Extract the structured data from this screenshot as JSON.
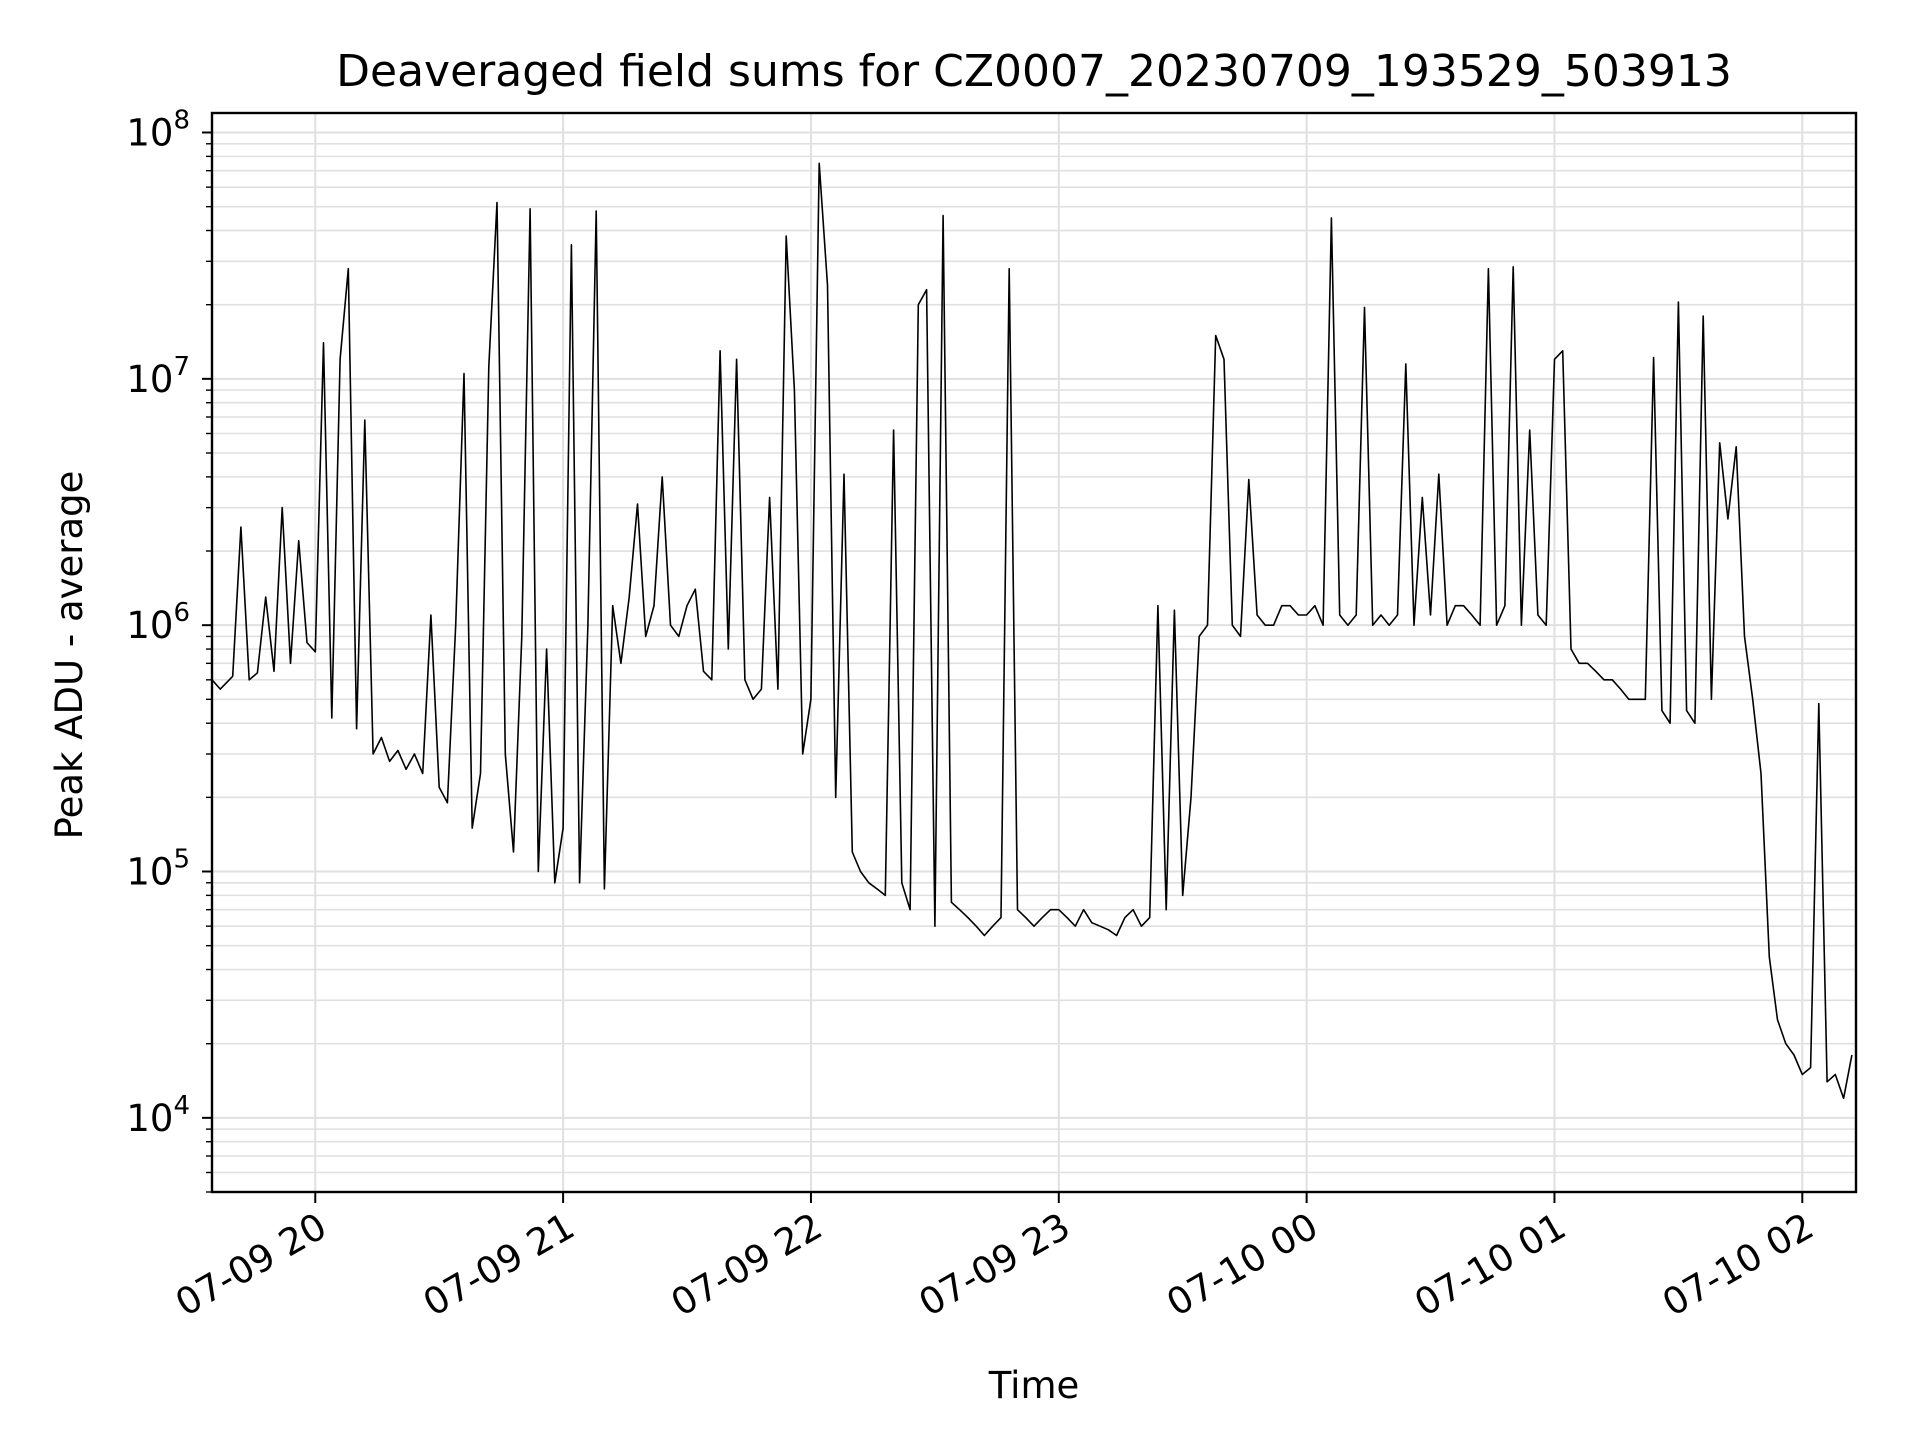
{
  "chart_data": {
    "type": "line",
    "title": "Deaveraged field sums for CZ0007_20230709_193529_503913",
    "xlabel": "Time",
    "ylabel": "Peak ADU - average",
    "yscale": "log",
    "ylim": [
      5000,
      120000000
    ],
    "xlim": [
      "2023-07-09 19:35",
      "2023-07-10 02:13"
    ],
    "grid": true,
    "line_color": "#000000",
    "grid_color": "#e0e0e0",
    "x_ticks": [
      {
        "value": "2023-07-09 20:00",
        "label": "07-09 20"
      },
      {
        "value": "2023-07-09 21:00",
        "label": "07-09 21"
      },
      {
        "value": "2023-07-09 22:00",
        "label": "07-09 22"
      },
      {
        "value": "2023-07-09 23:00",
        "label": "07-09 23"
      },
      {
        "value": "2023-07-10 00:00",
        "label": "07-10 00"
      },
      {
        "value": "2023-07-10 01:00",
        "label": "07-10 01"
      },
      {
        "value": "2023-07-10 02:00",
        "label": "07-10 02"
      }
    ],
    "y_ticks": [
      {
        "value": 10000,
        "base": "10",
        "exp": "4"
      },
      {
        "value": 100000,
        "base": "10",
        "exp": "5"
      },
      {
        "value": 1000000,
        "base": "10",
        "exp": "6"
      },
      {
        "value": 10000000,
        "base": "10",
        "exp": "7"
      },
      {
        "value": 100000000,
        "base": "10",
        "exp": "8"
      }
    ],
    "series": [
      {
        "x": [
          "2023-07-09 19:35",
          "2023-07-09 19:37",
          "2023-07-09 19:40",
          "2023-07-09 19:42",
          "2023-07-09 19:44",
          "2023-07-09 19:46",
          "2023-07-09 19:48",
          "2023-07-09 19:50",
          "2023-07-09 19:52",
          "2023-07-09 19:54",
          "2023-07-09 19:56",
          "2023-07-09 19:58",
          "2023-07-09 20:00",
          "2023-07-09 20:02",
          "2023-07-09 20:04",
          "2023-07-09 20:06",
          "2023-07-09 20:08",
          "2023-07-09 20:10",
          "2023-07-09 20:12",
          "2023-07-09 20:14",
          "2023-07-09 20:16",
          "2023-07-09 20:18",
          "2023-07-09 20:20",
          "2023-07-09 20:22",
          "2023-07-09 20:24",
          "2023-07-09 20:26",
          "2023-07-09 20:28",
          "2023-07-09 20:30",
          "2023-07-09 20:32",
          "2023-07-09 20:34",
          "2023-07-09 20:36",
          "2023-07-09 20:38",
          "2023-07-09 20:40",
          "2023-07-09 20:42",
          "2023-07-09 20:44",
          "2023-07-09 20:46",
          "2023-07-09 20:48",
          "2023-07-09 20:50",
          "2023-07-09 20:52",
          "2023-07-09 20:54",
          "2023-07-09 20:56",
          "2023-07-09 20:58",
          "2023-07-09 21:00",
          "2023-07-09 21:02",
          "2023-07-09 21:04",
          "2023-07-09 21:06",
          "2023-07-09 21:08",
          "2023-07-09 21:10",
          "2023-07-09 21:12",
          "2023-07-09 21:14",
          "2023-07-09 21:16",
          "2023-07-09 21:18",
          "2023-07-09 21:20",
          "2023-07-09 21:22",
          "2023-07-09 21:24",
          "2023-07-09 21:26",
          "2023-07-09 21:28",
          "2023-07-09 21:30",
          "2023-07-09 21:32",
          "2023-07-09 21:34",
          "2023-07-09 21:36",
          "2023-07-09 21:38",
          "2023-07-09 21:40",
          "2023-07-09 21:42",
          "2023-07-09 21:44",
          "2023-07-09 21:46",
          "2023-07-09 21:48",
          "2023-07-09 21:50",
          "2023-07-09 21:52",
          "2023-07-09 21:54",
          "2023-07-09 21:56",
          "2023-07-09 21:58",
          "2023-07-09 22:00",
          "2023-07-09 22:02",
          "2023-07-09 22:04",
          "2023-07-09 22:06",
          "2023-07-09 22:08",
          "2023-07-09 22:10",
          "2023-07-09 22:12",
          "2023-07-09 22:14",
          "2023-07-09 22:16",
          "2023-07-09 22:18",
          "2023-07-09 22:20",
          "2023-07-09 22:22",
          "2023-07-09 22:24",
          "2023-07-09 22:26",
          "2023-07-09 22:28",
          "2023-07-09 22:30",
          "2023-07-09 22:32",
          "2023-07-09 22:34",
          "2023-07-09 22:36",
          "2023-07-09 22:38",
          "2023-07-09 22:40",
          "2023-07-09 22:42",
          "2023-07-09 22:44",
          "2023-07-09 22:46",
          "2023-07-09 22:48",
          "2023-07-09 22:50",
          "2023-07-09 22:52",
          "2023-07-09 22:54",
          "2023-07-09 22:56",
          "2023-07-09 22:58",
          "2023-07-09 23:00",
          "2023-07-09 23:02",
          "2023-07-09 23:04",
          "2023-07-09 23:06",
          "2023-07-09 23:08",
          "2023-07-09 23:10",
          "2023-07-09 23:12",
          "2023-07-09 23:14",
          "2023-07-09 23:16",
          "2023-07-09 23:18",
          "2023-07-09 23:20",
          "2023-07-09 23:22",
          "2023-07-09 23:24",
          "2023-07-09 23:26",
          "2023-07-09 23:28",
          "2023-07-09 23:30",
          "2023-07-09 23:32",
          "2023-07-09 23:34",
          "2023-07-09 23:36",
          "2023-07-09 23:38",
          "2023-07-09 23:40",
          "2023-07-09 23:42",
          "2023-07-09 23:44",
          "2023-07-09 23:46",
          "2023-07-09 23:48",
          "2023-07-09 23:50",
          "2023-07-09 23:52",
          "2023-07-09 23:54",
          "2023-07-09 23:56",
          "2023-07-09 23:58",
          "2023-07-10 00:00",
          "2023-07-10 00:02",
          "2023-07-10 00:04",
          "2023-07-10 00:06",
          "2023-07-10 00:08",
          "2023-07-10 00:10",
          "2023-07-10 00:12",
          "2023-07-10 00:14",
          "2023-07-10 00:16",
          "2023-07-10 00:18",
          "2023-07-10 00:20",
          "2023-07-10 00:22",
          "2023-07-10 00:24",
          "2023-07-10 00:26",
          "2023-07-10 00:28",
          "2023-07-10 00:30",
          "2023-07-10 00:32",
          "2023-07-10 00:34",
          "2023-07-10 00:36",
          "2023-07-10 00:38",
          "2023-07-10 00:40",
          "2023-07-10 00:42",
          "2023-07-10 00:44",
          "2023-07-10 00:46",
          "2023-07-10 00:48",
          "2023-07-10 00:50",
          "2023-07-10 00:52",
          "2023-07-10 00:54",
          "2023-07-10 00:56",
          "2023-07-10 00:58",
          "2023-07-10 01:00",
          "2023-07-10 01:02",
          "2023-07-10 01:04",
          "2023-07-10 01:06",
          "2023-07-10 01:08",
          "2023-07-10 01:10",
          "2023-07-10 01:12",
          "2023-07-10 01:14",
          "2023-07-10 01:16",
          "2023-07-10 01:18",
          "2023-07-10 01:20",
          "2023-07-10 01:22",
          "2023-07-10 01:24",
          "2023-07-10 01:26",
          "2023-07-10 01:28",
          "2023-07-10 01:30",
          "2023-07-10 01:32",
          "2023-07-10 01:34",
          "2023-07-10 01:36",
          "2023-07-10 01:38",
          "2023-07-10 01:40",
          "2023-07-10 01:42",
          "2023-07-10 01:44",
          "2023-07-10 01:46",
          "2023-07-10 01:48",
          "2023-07-10 01:50",
          "2023-07-10 01:52",
          "2023-07-10 01:54",
          "2023-07-10 01:56",
          "2023-07-10 01:58",
          "2023-07-10 02:00",
          "2023-07-10 02:02",
          "2023-07-10 02:04",
          "2023-07-10 02:06",
          "2023-07-10 02:08",
          "2023-07-10 02:10",
          "2023-07-10 02:12"
        ],
        "y": [
          600000,
          550000,
          620000,
          2500000,
          600000,
          640000,
          1300000,
          650000,
          3000000,
          700000,
          2200000,
          850000,
          780000,
          14000000,
          420000,
          12000000,
          28000000,
          380000,
          6800000,
          300000,
          350000,
          280000,
          310000,
          260000,
          300000,
          250000,
          1100000,
          220000,
          190000,
          1000000,
          10500000,
          150000,
          250000,
          11200000,
          52000000,
          300000,
          120000,
          900000,
          49000000,
          100000,
          800000,
          90000,
          150000,
          35000000,
          90000,
          1000000,
          48000000,
          85000,
          1200000,
          700000,
          1300000,
          3100000,
          900000,
          1200000,
          4000000,
          1000000,
          900000,
          1200000,
          1400000,
          650000,
          600000,
          13000000,
          800000,
          12000000,
          600000,
          500000,
          550000,
          3300000,
          550000,
          38000000,
          9000000,
          300000,
          500000,
          75000000,
          24000000,
          200000,
          4100000,
          120000,
          100000,
          90000,
          85000,
          80000,
          6200000,
          90000,
          70000,
          20000000,
          23000000,
          60000,
          46000000,
          75000,
          70000,
          65000,
          60000,
          55000,
          60000,
          65000,
          28000000,
          70000,
          65000,
          60000,
          65000,
          70000,
          70000,
          65000,
          60000,
          70000,
          62000,
          60000,
          58000,
          55000,
          65000,
          70000,
          60000,
          65000,
          1200000,
          70000,
          1150000,
          80000,
          200000,
          900000,
          1000000,
          15000000,
          12000000,
          1000000,
          900000,
          3900000,
          1100000,
          1000000,
          1000000,
          1200000,
          1200000,
          1100000,
          1100000,
          1200000,
          1000000,
          45000000,
          1100000,
          1000000,
          1100000,
          19500000,
          1000000,
          1100000,
          1000000,
          1100000,
          11500000,
          1000000,
          3300000,
          1100000,
          4100000,
          1000000,
          1200000,
          1200000,
          1100000,
          1000000,
          28000000,
          1000000,
          1200000,
          28500000,
          1000000,
          6200000,
          1100000,
          1000000,
          12000000,
          13000000,
          800000,
          700000,
          700000,
          650000,
          600000,
          600000,
          550000,
          500000,
          500000,
          500000,
          12200000,
          450000,
          400000,
          20500000,
          450000,
          400000,
          18000000,
          500000,
          5500000,
          2700000,
          5300000,
          900000,
          500000,
          250000,
          45000,
          25000,
          20000,
          18000,
          15000,
          16000,
          480000,
          14000,
          15000,
          12000,
          18000
        ]
      }
    ]
  }
}
